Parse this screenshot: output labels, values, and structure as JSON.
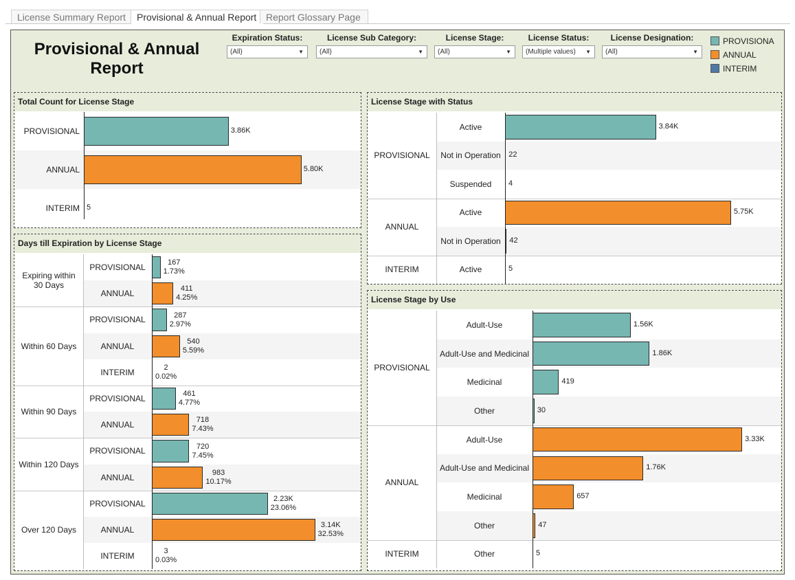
{
  "tabs": [
    {
      "label": "License Summary Report"
    },
    {
      "label": "Provisional & Annual Report"
    },
    {
      "label": "Report Glossary Page"
    }
  ],
  "title": "Provisional & Annual Report",
  "filters": [
    {
      "label": "Expiration Status:",
      "value": "(All)"
    },
    {
      "label": "License Sub Category:",
      "value": "(All)"
    },
    {
      "label": "License Stage:",
      "value": "(All)"
    },
    {
      "label": "License Status:",
      "value": "(Multiple values)"
    },
    {
      "label": "License Designation:",
      "value": "(All)"
    }
  ],
  "colors": {
    "PROVISIONAL": "#76b7b2",
    "ANNUAL": "#f28e2b",
    "INTERIM": "#4e79a7"
  },
  "legend": [
    {
      "label": "PROVISIONA",
      "key": "PROVISIONAL"
    },
    {
      "label": "ANNUAL",
      "key": "ANNUAL"
    },
    {
      "label": "INTERIM",
      "key": "INTERIM"
    }
  ],
  "chart_data": [
    {
      "id": "total",
      "type": "bar",
      "title": "Total Count for License Stage",
      "categories": [
        "PROVISIONAL",
        "ANNUAL",
        "INTERIM"
      ],
      "values": [
        3860,
        5800,
        5
      ],
      "value_labels": [
        "3.86K",
        "5.80K",
        "5"
      ],
      "xlim": [
        0,
        6500
      ]
    },
    {
      "id": "status",
      "type": "bar",
      "title": "License Stage with Status",
      "groups": [
        {
          "stage": "PROVISIONAL",
          "rows": [
            {
              "label": "Active",
              "value": 3840,
              "text": "3.84K"
            },
            {
              "label": "Not in Operation",
              "value": 22,
              "text": "22"
            },
            {
              "label": "Suspended",
              "value": 4,
              "text": "4"
            }
          ]
        },
        {
          "stage": "ANNUAL",
          "rows": [
            {
              "label": "Active",
              "value": 5750,
              "text": "5.75K"
            },
            {
              "label": "Not in Operation",
              "value": 42,
              "text": "42"
            }
          ]
        },
        {
          "stage": "INTERIM",
          "rows": [
            {
              "label": "Active",
              "value": 5,
              "text": "5"
            }
          ]
        }
      ],
      "xlim": [
        0,
        6400
      ]
    },
    {
      "id": "expiration",
      "type": "bar",
      "title": "Days till Expiration by License Stage",
      "groups": [
        {
          "label": "Expiring within 30 Days",
          "rows": [
            {
              "stage": "PROVISIONAL",
              "value": 167,
              "text": "167",
              "pct": "1.73%"
            },
            {
              "stage": "ANNUAL",
              "value": 411,
              "text": "411",
              "pct": "4.25%"
            }
          ]
        },
        {
          "label": "Within 60 Days",
          "rows": [
            {
              "stage": "PROVISIONAL",
              "value": 287,
              "text": "287",
              "pct": "2.97%"
            },
            {
              "stage": "ANNUAL",
              "value": 540,
              "text": "540",
              "pct": "5.59%"
            },
            {
              "stage": "INTERIM",
              "value": 2,
              "text": "2",
              "pct": "0.02%"
            }
          ]
        },
        {
          "label": "Within 90 Days",
          "rows": [
            {
              "stage": "PROVISIONAL",
              "value": 461,
              "text": "461",
              "pct": "4.77%"
            },
            {
              "stage": "ANNUAL",
              "value": 718,
              "text": "718",
              "pct": "7.43%"
            }
          ]
        },
        {
          "label": "Within 120 Days",
          "rows": [
            {
              "stage": "PROVISIONAL",
              "value": 720,
              "text": "720",
              "pct": "7.45%"
            },
            {
              "stage": "ANNUAL",
              "value": 983,
              "text": "983",
              "pct": "10.17%"
            }
          ]
        },
        {
          "label": "Over 120 Days",
          "rows": [
            {
              "stage": "PROVISIONAL",
              "value": 2230,
              "text": "2.23K",
              "pct": "23.06%"
            },
            {
              "stage": "ANNUAL",
              "value": 3140,
              "text": "3.14K",
              "pct": "32.53%"
            },
            {
              "stage": "INTERIM",
              "value": 3,
              "text": "3",
              "pct": "0.03%"
            }
          ]
        }
      ],
      "xlim": [
        0,
        3700
      ]
    },
    {
      "id": "use",
      "type": "bar",
      "title": "License Stage by Use",
      "groups": [
        {
          "stage": "PROVISIONAL",
          "rows": [
            {
              "label": "Adult-Use",
              "value": 1560,
              "text": "1.56K"
            },
            {
              "label": "Adult-Use and Medicinal",
              "value": 1860,
              "text": "1.86K"
            },
            {
              "label": "Medicinal",
              "value": 419,
              "text": "419"
            },
            {
              "label": "Other",
              "value": 30,
              "text": "30"
            }
          ]
        },
        {
          "stage": "ANNUAL",
          "rows": [
            {
              "label": "Adult-Use",
              "value": 3330,
              "text": "3.33K"
            },
            {
              "label": "Adult-Use and Medicinal",
              "value": 1760,
              "text": "1.76K"
            },
            {
              "label": "Medicinal",
              "value": 657,
              "text": "657"
            },
            {
              "label": "Other",
              "value": 47,
              "text": "47"
            }
          ]
        },
        {
          "stage": "INTERIM",
          "rows": [
            {
              "label": "Other",
              "value": 5,
              "text": "5"
            }
          ]
        }
      ],
      "xlim": [
        0,
        3700
      ]
    }
  ]
}
